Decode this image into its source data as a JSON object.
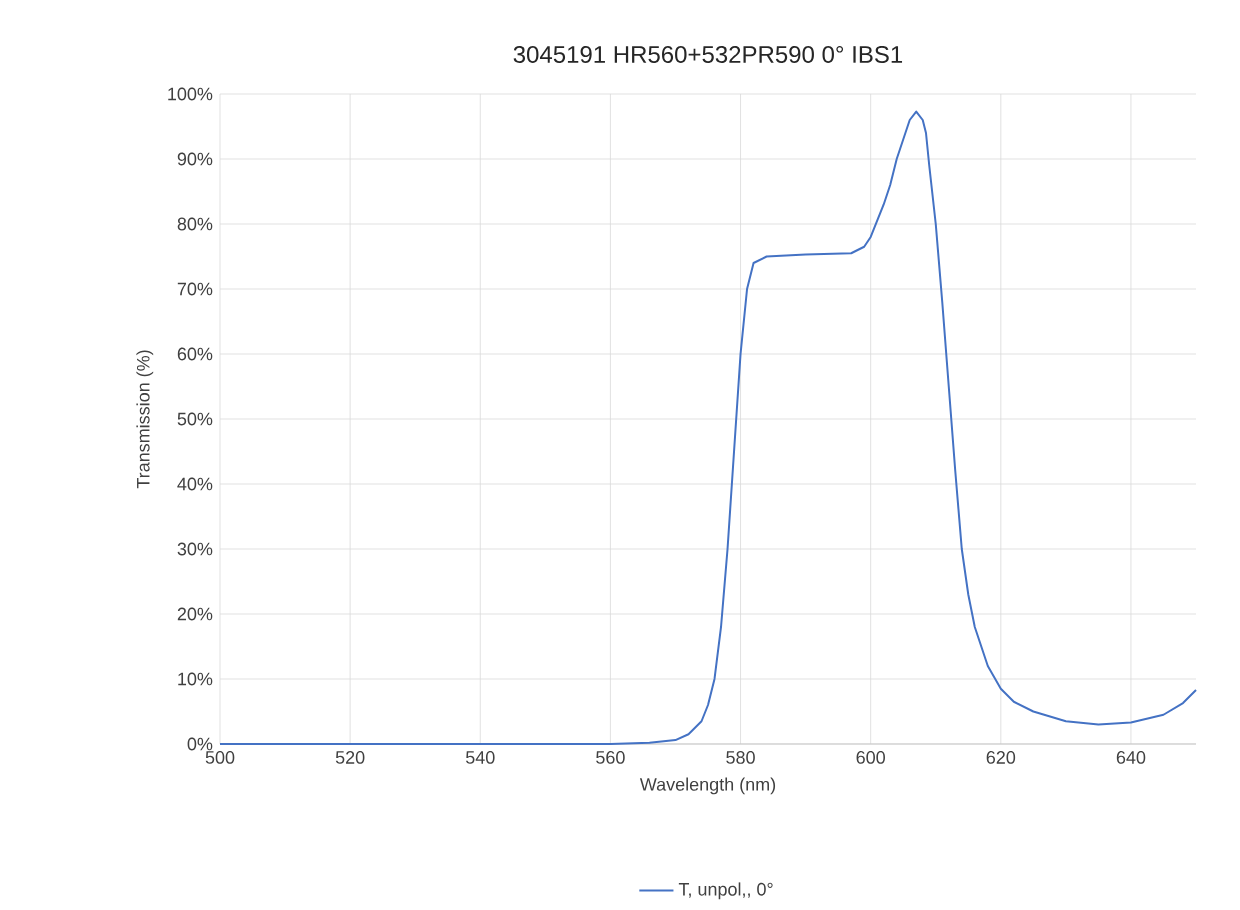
{
  "chart_data": {
    "type": "line",
    "title": "3045191 HR560+532PR590 0° IBS1",
    "xlabel": "Wavelength (nm)",
    "ylabel": "Transmission (%)",
    "xlim": [
      500,
      650
    ],
    "xticks": [
      500,
      520,
      540,
      560,
      580,
      600,
      620,
      640
    ],
    "ylim": [
      0,
      100
    ],
    "yticks": [
      {
        "value": 0,
        "label": "0%"
      },
      {
        "value": 10,
        "label": "10%"
      },
      {
        "value": 20,
        "label": "20%"
      },
      {
        "value": 30,
        "label": "30%"
      },
      {
        "value": 40,
        "label": "40%"
      },
      {
        "value": 50,
        "label": "50%"
      },
      {
        "value": 60,
        "label": "60%"
      },
      {
        "value": 70,
        "label": "70%"
      },
      {
        "value": 80,
        "label": "80%"
      },
      {
        "value": 90,
        "label": "90%"
      },
      {
        "value": 100,
        "label": "100%"
      }
    ],
    "grid": true,
    "legend": "bottom",
    "marker": "none",
    "line_style": "solid",
    "series": [
      {
        "name": "T, unpol,, 0°",
        "color": "#4472c4",
        "x": [
          500,
          520,
          540,
          560,
          566,
          570,
          572,
          574,
          575,
          576,
          577,
          578,
          579,
          580,
          581,
          582,
          584,
          590,
          597,
          599,
          600,
          602,
          603,
          604,
          605,
          606,
          607,
          608,
          608.5,
          609,
          610,
          611,
          612,
          613,
          614,
          615,
          616,
          618,
          620,
          622,
          625,
          630,
          635,
          640,
          645,
          648,
          650
        ],
        "values": [
          0,
          0,
          0,
          0,
          0.2,
          0.6,
          1.5,
          3.5,
          6,
          10,
          18,
          30,
          45,
          60,
          70,
          74,
          75,
          75.3,
          75.5,
          76.5,
          78,
          83,
          86,
          90,
          93,
          96,
          97.3,
          96,
          94,
          89,
          80,
          68,
          55,
          42,
          30,
          23,
          18,
          12,
          8.5,
          6.5,
          5,
          3.5,
          3,
          3.3,
          4.5,
          6.3,
          8.3
        ]
      }
    ]
  }
}
